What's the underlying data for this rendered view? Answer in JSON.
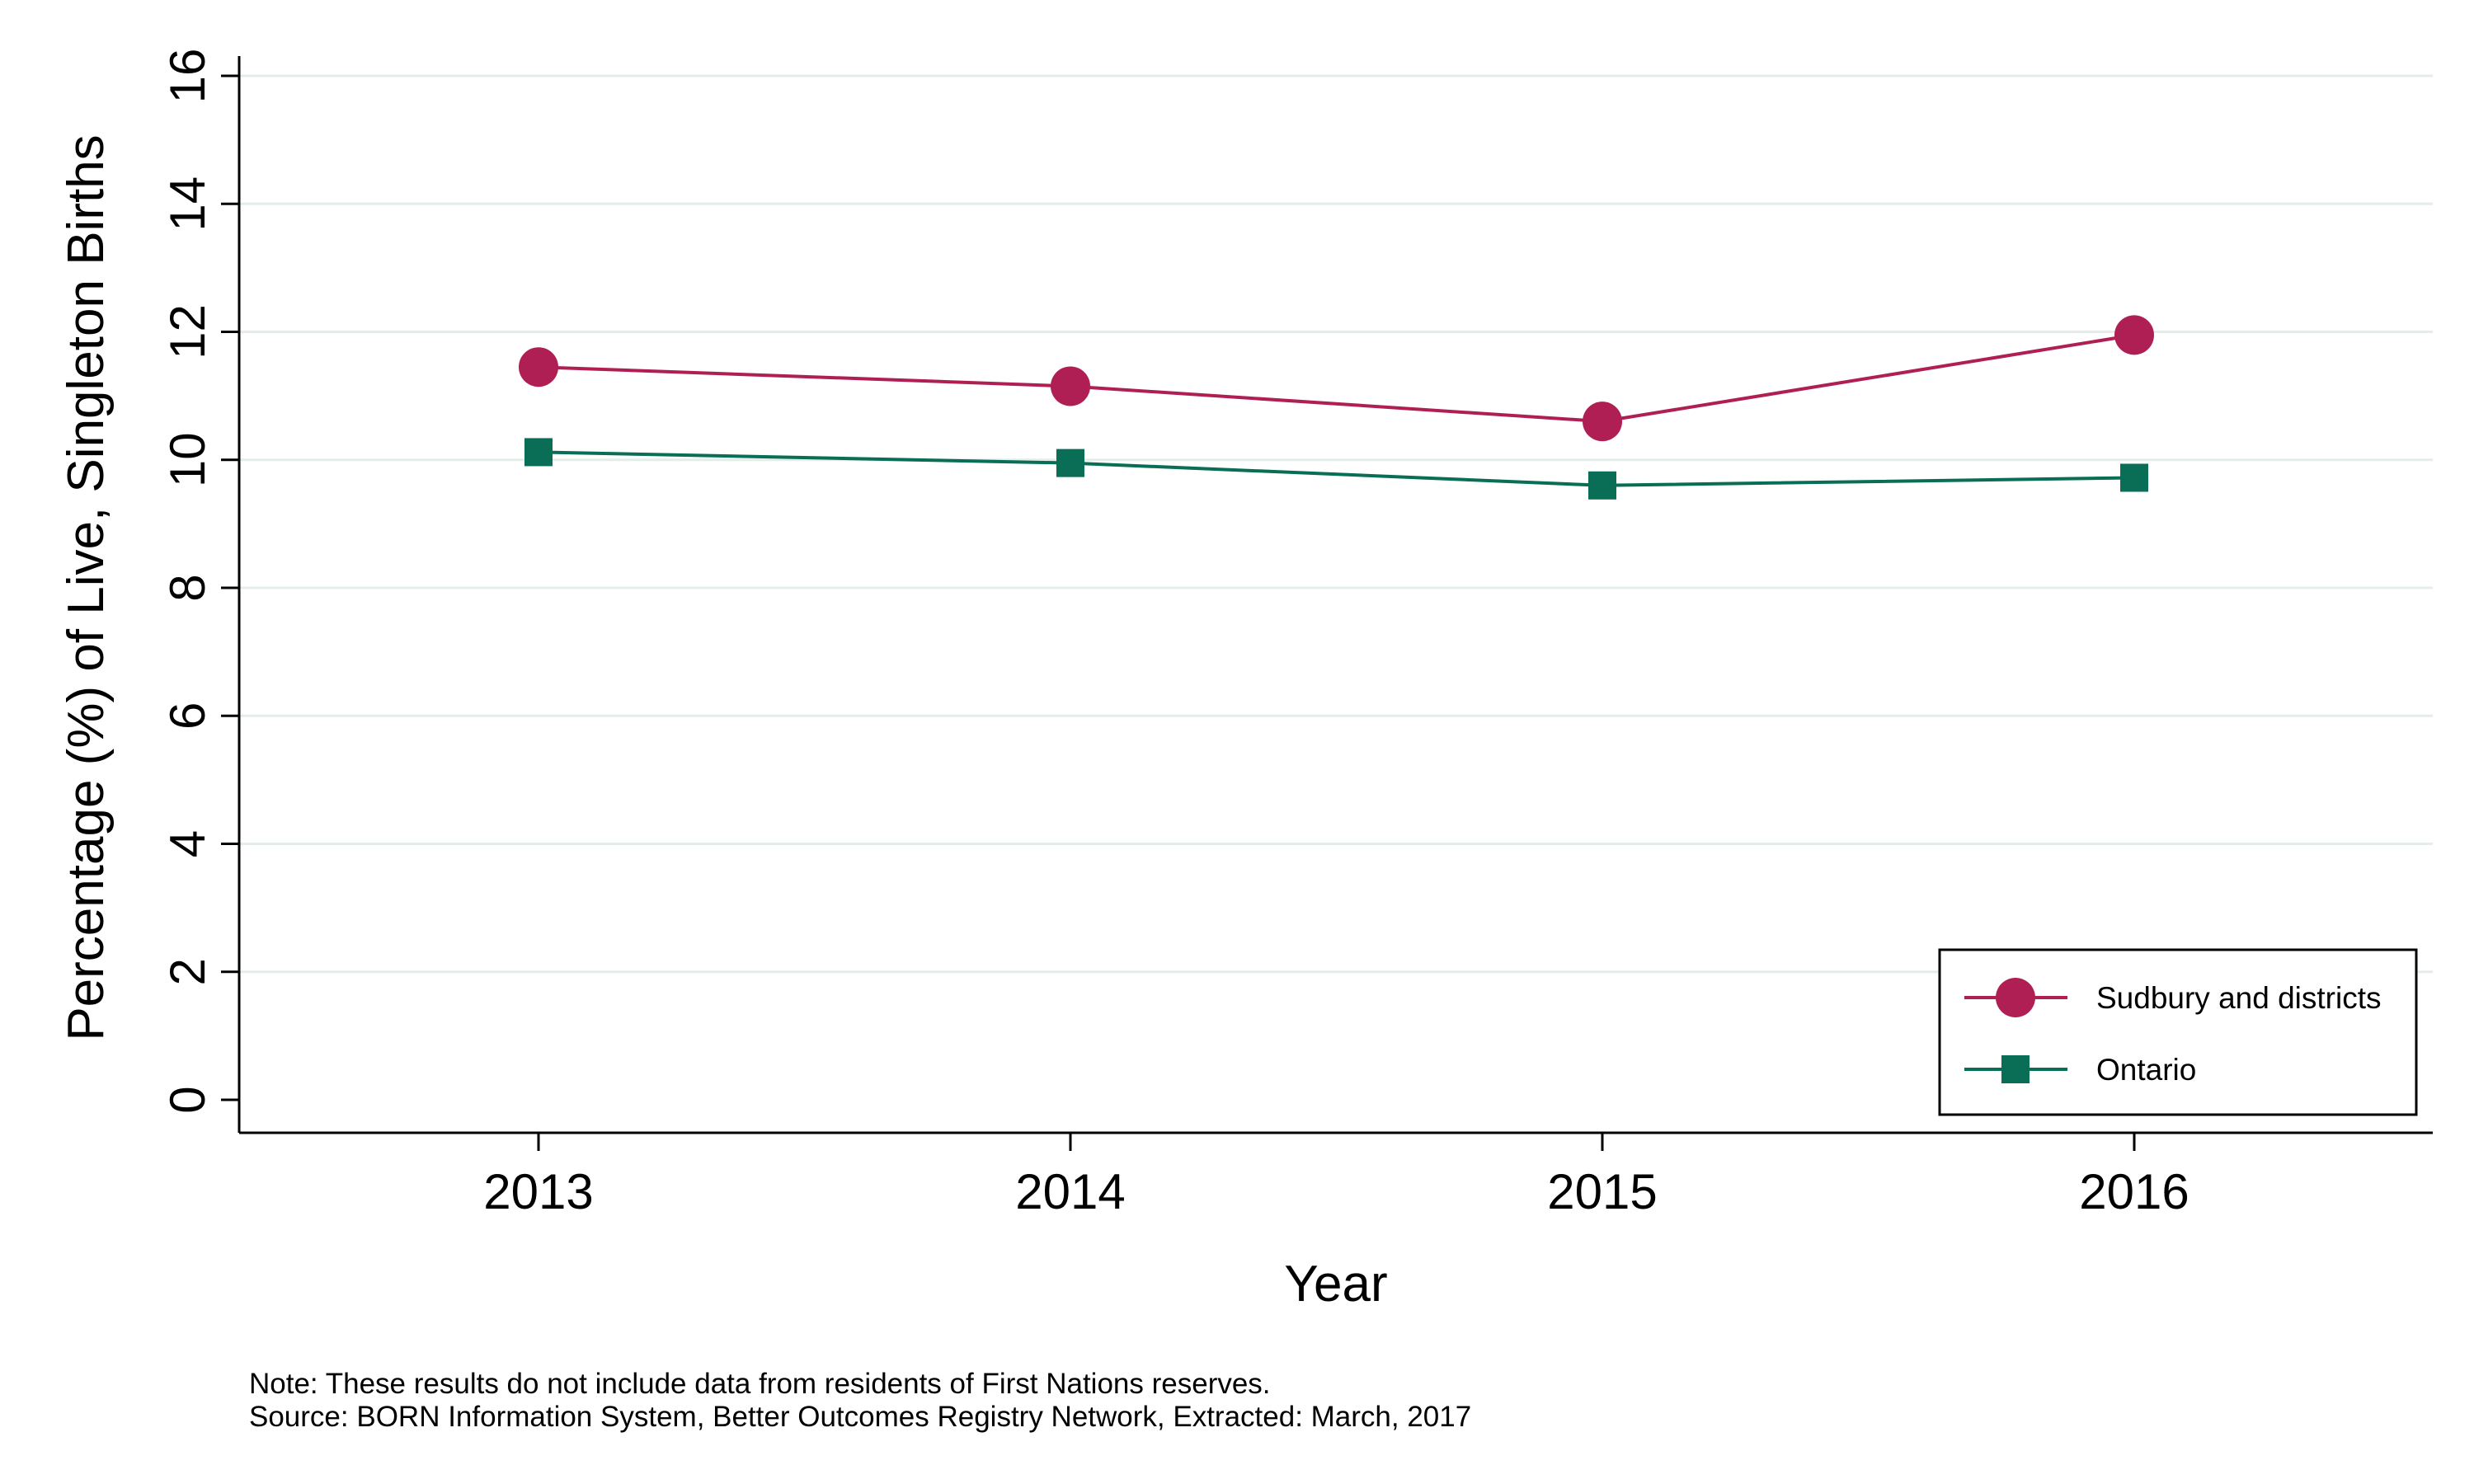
{
  "chart_data": {
    "type": "line",
    "xlabel": "Year",
    "ylabel": "Percentage (%) of Live, Singleton Births",
    "categories": [
      "2013",
      "2014",
      "2015",
      "2016"
    ],
    "ylim": [
      0,
      16
    ],
    "yticks": [
      "0",
      "2",
      "4",
      "6",
      "8",
      "10",
      "12",
      "14",
      "16"
    ],
    "grid": "horizontal",
    "legend_position": "bottom-right",
    "series": [
      {
        "name": "Sudbury and districts",
        "values": [
          11.45,
          11.15,
          10.6,
          11.95
        ],
        "color": "#B01F54",
        "marker": "circle"
      },
      {
        "name": "Ontario",
        "values": [
          10.12,
          9.95,
          9.6,
          9.72
        ],
        "color": "#0A6E56",
        "marker": "square"
      }
    ]
  },
  "notes": [
    "Note: These results do not include data from residents of First Nations reserves.",
    "Source: BORN Information System, Better Outcomes Registry Network, Extracted: March, 2017"
  ]
}
